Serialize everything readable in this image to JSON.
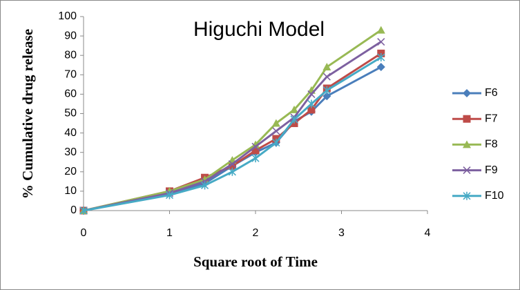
{
  "chart_data": {
    "type": "line",
    "title": "Higuchi Model",
    "x_label": "Square root of Time",
    "y_label": "% Cumulative drug release",
    "x": [
      0,
      1,
      1.41,
      1.73,
      2,
      2.24,
      2.45,
      2.65,
      2.83,
      3.46
    ],
    "series": [
      {
        "name": "F6",
        "color": "#4a7ebb",
        "marker": "diamond",
        "values": [
          0,
          9,
          14,
          23,
          30,
          35,
          46,
          51,
          59,
          74
        ]
      },
      {
        "name": "F7",
        "color": "#be4b48",
        "marker": "square",
        "values": [
          0,
          10,
          17,
          23,
          31,
          37,
          45,
          52,
          63,
          81
        ]
      },
      {
        "name": "F8",
        "color": "#98b954",
        "marker": "triangle",
        "values": [
          0,
          10,
          16,
          26,
          34,
          45,
          52,
          62,
          74,
          93
        ]
      },
      {
        "name": "F9",
        "color": "#7d60a0",
        "marker": "x",
        "values": [
          0,
          9,
          15,
          24,
          33,
          41,
          48,
          60,
          69,
          87
        ]
      },
      {
        "name": "F10",
        "color": "#46aac5",
        "marker": "star",
        "values": [
          0,
          8,
          13,
          20,
          27,
          35,
          47,
          55,
          62,
          79
        ]
      }
    ],
    "xlim": [
      0,
      4
    ],
    "xticks": [
      0,
      1,
      2,
      3,
      4
    ],
    "ylim": [
      0,
      100
    ],
    "yticks": [
      0,
      10,
      20,
      30,
      40,
      50,
      60,
      70,
      80,
      90,
      100
    ],
    "grid": false,
    "legend": "right"
  }
}
